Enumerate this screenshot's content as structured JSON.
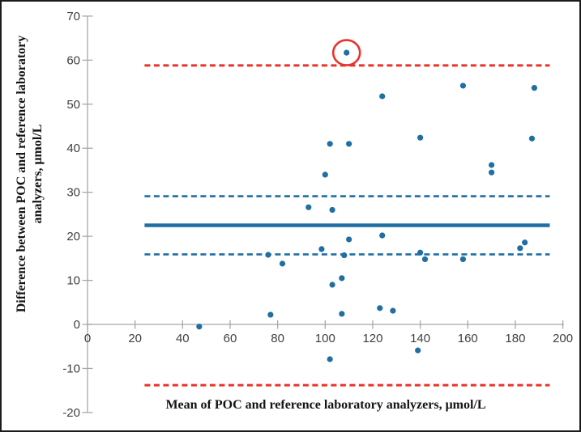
{
  "figure": {
    "background_color": "#ffffff",
    "border_color": "#1c1c1c"
  },
  "chart_data": {
    "type": "scatter",
    "title": "",
    "xlabel": "Mean of POC and reference laboratory analyzers, μmol/L",
    "ylabel_line1": "Difference between POC and reference laboratory",
    "ylabel_line2": "analyzers, μmol/L",
    "xlim": [
      0,
      200
    ],
    "ylim": [
      -20,
      70
    ],
    "x_ticks": [
      0,
      20,
      40,
      60,
      80,
      100,
      120,
      140,
      160,
      180,
      200
    ],
    "y_ticks": [
      -20,
      -10,
      0,
      10,
      20,
      30,
      40,
      50,
      60,
      70
    ],
    "grid": false,
    "legend": "none",
    "points": [
      [
        47,
        -0.5
      ],
      [
        76,
        15.8
      ],
      [
        77,
        2.2
      ],
      [
        82,
        13.8
      ],
      [
        93,
        26.6
      ],
      [
        98.5,
        17.1
      ],
      [
        100,
        34
      ],
      [
        102,
        41
      ],
      [
        102,
        -7.9
      ],
      [
        103,
        26
      ],
      [
        103,
        9
      ],
      [
        107,
        10.5
      ],
      [
        107,
        2.4
      ],
      [
        108,
        15.7
      ],
      [
        109,
        61.7
      ],
      [
        110,
        41
      ],
      [
        110,
        19.3
      ],
      [
        123,
        3.7
      ],
      [
        124,
        51.8
      ],
      [
        124,
        20.2
      ],
      [
        128.5,
        3.1
      ],
      [
        139,
        -5.9
      ],
      [
        140,
        42.4
      ],
      [
        140,
        16.3
      ],
      [
        142,
        14.8
      ],
      [
        158,
        54.2
      ],
      [
        158,
        14.8
      ],
      [
        170,
        36.2
      ],
      [
        170,
        34.5
      ],
      [
        182,
        17.3
      ],
      [
        184,
        18.6
      ],
      [
        187,
        42.2
      ],
      [
        188,
        53.7
      ]
    ],
    "reference_lines": [
      {
        "name": "upper-limit-of-agreement",
        "y": 58.8,
        "style": "dashed",
        "color": "#e9332a",
        "width": 3
      },
      {
        "name": "upper-ci-of-bias",
        "y": 29.1,
        "style": "dashed",
        "color": "#1f6fa3",
        "width": 2.6
      },
      {
        "name": "mean-bias",
        "y": 22.5,
        "style": "solid",
        "color": "#1f6fa3",
        "width": 4.5
      },
      {
        "name": "lower-ci-of-bias",
        "y": 15.9,
        "style": "dashed",
        "color": "#1f6fa3",
        "width": 2.6
      },
      {
        "name": "lower-limit-of-agreement",
        "y": -13.8,
        "style": "dashed",
        "color": "#e9332a",
        "width": 3
      }
    ],
    "reference_line_x_extent": [
      24,
      194.5
    ],
    "annotation_circle": {
      "x": 109,
      "y": 61.7,
      "color": "#e9332a"
    },
    "point_color": "#1f6fa3",
    "point_radius_px": 3.6,
    "axis_color": "#a8a8a8",
    "tick_label_color": "#3f3f3f"
  }
}
